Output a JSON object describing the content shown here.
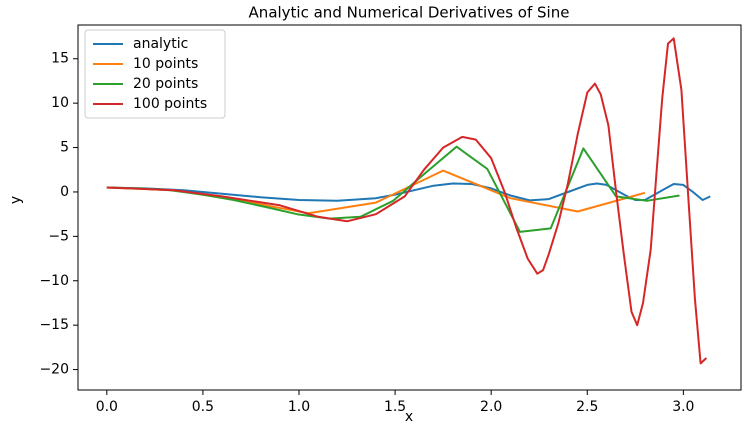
{
  "chart_data": {
    "type": "line",
    "title": "Analytic and Numerical Derivatives of Sine",
    "x_label": "x",
    "y_label": "y",
    "xlim": [
      -0.15,
      3.3
    ],
    "ylim": [
      -22.3,
      18.8
    ],
    "xticks": [
      {
        "value": 0,
        "label": "0.0"
      },
      {
        "value": 0.5,
        "label": "0.5"
      },
      {
        "value": 1,
        "label": "1.0"
      },
      {
        "value": 1.5,
        "label": "1.5"
      },
      {
        "value": 2,
        "label": "2.0"
      },
      {
        "value": 2.5,
        "label": "2.5"
      },
      {
        "value": 3,
        "label": "3.0"
      }
    ],
    "yticks": [
      {
        "value": -20,
        "label": "−20"
      },
      {
        "value": -15,
        "label": "−15"
      },
      {
        "value": -10,
        "label": "−10"
      },
      {
        "value": -5,
        "label": "−5"
      },
      0,
      5,
      10,
      15
    ],
    "legend": "upper left",
    "series": [
      {
        "name": "analytic",
        "color": "#1f77b4",
        "x": [
          0,
          0.2,
          0.4,
          0.6,
          0.8,
          1.0,
          1.2,
          1.4,
          1.5,
          1.6,
          1.7,
          1.8,
          1.9,
          2.0,
          2.1,
          2.2,
          2.3,
          2.4,
          2.5,
          2.55,
          2.6,
          2.7,
          2.75,
          2.8,
          2.9,
          2.95,
          3.0,
          3.05,
          3.1,
          3.14
        ],
        "values": [
          0.5,
          0.4,
          0.2,
          -0.2,
          -0.6,
          -0.9,
          -1.0,
          -0.7,
          -0.3,
          0.2,
          0.7,
          0.95,
          0.9,
          0.4,
          -0.4,
          -0.95,
          -0.8,
          0.0,
          0.8,
          0.95,
          0.8,
          -0.4,
          -0.9,
          -0.9,
          0.3,
          0.9,
          0.8,
          0.0,
          -0.9,
          -0.5
        ]
      },
      {
        "name": "10 points",
        "color": "#ff7f0e",
        "x": [
          0,
          0.35,
          0.7,
          1.05,
          1.4,
          1.75,
          2.1,
          2.45,
          2.8
        ],
        "values": [
          0.5,
          0.2,
          -1.0,
          -2.4,
          -1.2,
          2.4,
          -0.7,
          -2.2,
          -0.1
        ]
      },
      {
        "name": "20 points",
        "color": "#2ca02c",
        "x": [
          0,
          0.165,
          0.33,
          0.5,
          0.66,
          0.83,
          0.99,
          1.16,
          1.32,
          1.49,
          1.65,
          1.82,
          1.98,
          2.15,
          2.31,
          2.48,
          2.65,
          2.81,
          2.98
        ],
        "values": [
          0.5,
          0.4,
          0.2,
          -0.3,
          -0.9,
          -1.7,
          -2.5,
          -3.0,
          -2.8,
          -1.0,
          2.0,
          5.1,
          2.6,
          -4.5,
          -4.1,
          4.9,
          -0.5,
          -1.0,
          -0.4
        ]
      },
      {
        "name": "100 points",
        "color": "#d62728",
        "x": [
          0,
          0.35,
          0.6,
          0.9,
          1.1,
          1.25,
          1.4,
          1.55,
          1.65,
          1.75,
          1.85,
          1.92,
          2.0,
          2.07,
          2.13,
          2.19,
          2.24,
          2.27,
          2.3,
          2.35,
          2.4,
          2.45,
          2.5,
          2.54,
          2.57,
          2.61,
          2.65,
          2.69,
          2.73,
          2.76,
          2.79,
          2.83,
          2.86,
          2.89,
          2.92,
          2.95,
          2.99,
          3.03,
          3.06,
          3.09,
          3.12
        ],
        "values": [
          0.5,
          0.2,
          -0.5,
          -1.5,
          -2.8,
          -3.3,
          -2.5,
          -0.5,
          2.5,
          5.0,
          6.2,
          5.9,
          3.8,
          0,
          -4,
          -7.5,
          -9.2,
          -8.8,
          -7,
          -3.5,
          1,
          6.5,
          11.2,
          12.2,
          11,
          7.5,
          0,
          -7,
          -13.5,
          -15,
          -12.5,
          -6.5,
          2,
          10.5,
          16.7,
          17.3,
          11.5,
          -2,
          -12,
          -19.3,
          -18.7
        ]
      }
    ]
  }
}
